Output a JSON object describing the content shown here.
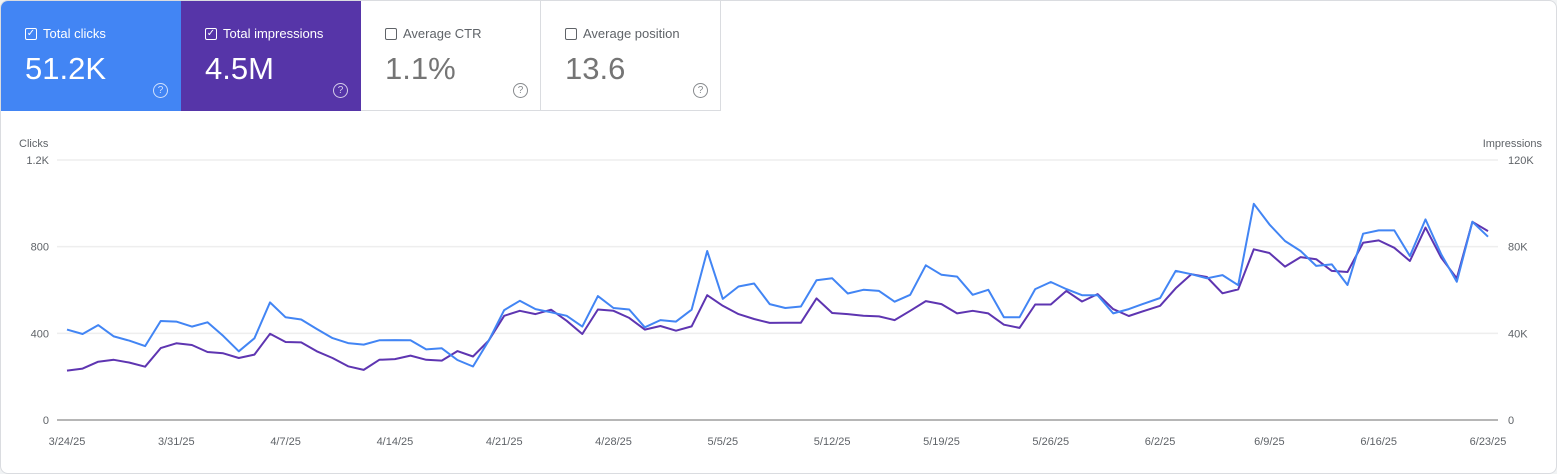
{
  "metrics": [
    {
      "label": "Total clicks",
      "value": "51.2K",
      "checked": true,
      "color": "#4285f4"
    },
    {
      "label": "Total impressions",
      "value": "4.5M",
      "checked": true,
      "color": "#5635a8"
    },
    {
      "label": "Average CTR",
      "value": "1.1%",
      "checked": false
    },
    {
      "label": "Average position",
      "value": "13.6",
      "checked": false
    }
  ],
  "icons": {
    "checked": "☑",
    "help": "?"
  },
  "chart_data": {
    "type": "line",
    "left_axis": {
      "label": "Clicks",
      "ticks": [
        "0",
        "400",
        "800",
        "1.2K"
      ],
      "range": [
        0,
        1200
      ]
    },
    "right_axis": {
      "label": "Impressions",
      "ticks": [
        "0",
        "40K",
        "80K",
        "120K"
      ],
      "range": [
        0,
        120000
      ]
    },
    "x_ticks": [
      "3/24/25",
      "3/31/25",
      "4/7/25",
      "4/14/25",
      "4/21/25",
      "4/28/25",
      "5/5/25",
      "5/12/25",
      "5/19/25",
      "5/26/25",
      "6/2/25",
      "6/9/25",
      "6/16/25",
      "6/23/25"
    ],
    "grid": true,
    "x": [
      "3/24/25",
      "3/25/25",
      "3/26/25",
      "3/27/25",
      "3/28/25",
      "3/29/25",
      "3/30/25",
      "3/31/25",
      "4/1/25",
      "4/2/25",
      "4/3/25",
      "4/4/25",
      "4/5/25",
      "4/6/25",
      "4/7/25",
      "4/8/25",
      "4/9/25",
      "4/10/25",
      "4/11/25",
      "4/12/25",
      "4/13/25",
      "4/14/25",
      "4/15/25",
      "4/16/25",
      "4/17/25",
      "4/18/25",
      "4/19/25",
      "4/20/25",
      "4/21/25",
      "4/22/25",
      "4/23/25",
      "4/24/25",
      "4/25/25",
      "4/26/25",
      "4/27/25",
      "4/28/25",
      "4/29/25",
      "4/30/25",
      "5/1/25",
      "5/2/25",
      "5/3/25",
      "5/4/25",
      "5/5/25",
      "5/6/25",
      "5/7/25",
      "5/8/25",
      "5/9/25",
      "5/10/25",
      "5/11/25",
      "5/12/25",
      "5/13/25",
      "5/14/25",
      "5/15/25",
      "5/16/25",
      "5/17/25",
      "5/18/25",
      "5/19/25",
      "5/20/25",
      "5/21/25",
      "5/22/25",
      "5/23/25",
      "5/24/25",
      "5/25/25",
      "5/26/25",
      "5/27/25",
      "5/28/25",
      "5/29/25",
      "5/30/25",
      "5/31/25",
      "6/1/25",
      "6/2/25",
      "6/3/25",
      "6/4/25",
      "6/5/25",
      "6/6/25",
      "6/7/25",
      "6/8/25",
      "6/9/25",
      "6/10/25",
      "6/11/25",
      "6/12/25",
      "6/13/25",
      "6/14/25",
      "6/15/25",
      "6/16/25",
      "6/17/25",
      "6/18/25",
      "6/19/25",
      "6/20/25",
      "6/21/25",
      "6/22/25",
      "6/23/25"
    ],
    "series": [
      {
        "name": "Clicks",
        "axis": "left",
        "color": "#4285f4",
        "values": [
          417,
          397,
          438,
          386,
          366,
          341,
          457,
          454,
          431,
          451,
          388,
          317,
          377,
          543,
          474,
          464,
          420,
          378,
          355,
          348,
          368,
          369,
          368,
          326,
          331,
          277,
          247,
          365,
          507,
          550,
          512,
          497,
          481,
          431,
          572,
          517,
          510,
          428,
          461,
          454,
          509,
          780,
          559,
          616,
          630,
          535,
          517,
          524,
          645,
          654,
          584,
          601,
          596,
          546,
          578,
          714,
          670,
          662,
          578,
          601,
          474,
          474,
          604,
          637,
          604,
          576,
          576,
          492,
          512,
          538,
          563,
          688,
          673,
          654,
          669,
          622,
          998,
          903,
          826,
          780,
          711,
          718,
          623,
          860,
          875,
          875,
          757,
          926,
          765,
          638,
          915,
          846
        ]
      },
      {
        "name": "Impressions",
        "axis": "right",
        "color": "#5e35b1",
        "values": [
          22800,
          23700,
          26900,
          27800,
          26500,
          24600,
          33200,
          35400,
          34600,
          31400,
          30800,
          28600,
          30200,
          39800,
          36000,
          35800,
          31700,
          28600,
          24800,
          23100,
          27800,
          28100,
          29700,
          27800,
          27400,
          31800,
          29300,
          36600,
          48100,
          50400,
          48900,
          50900,
          45800,
          39700,
          51000,
          50400,
          47100,
          41700,
          43400,
          41200,
          43200,
          57600,
          52700,
          48900,
          46600,
          44800,
          44900,
          44900,
          56100,
          49400,
          48900,
          48100,
          47800,
          46100,
          50400,
          54900,
          53500,
          49200,
          50400,
          49200,
          44000,
          42500,
          53300,
          53300,
          59600,
          54700,
          58100,
          51200,
          48000,
          50400,
          52700,
          60800,
          67300,
          66000,
          58500,
          60300,
          78800,
          77100,
          70800,
          75200,
          74200,
          68800,
          68300,
          81800,
          82900,
          79500,
          73400,
          88800,
          74900,
          65400,
          91500,
          87200
        ]
      }
    ]
  }
}
